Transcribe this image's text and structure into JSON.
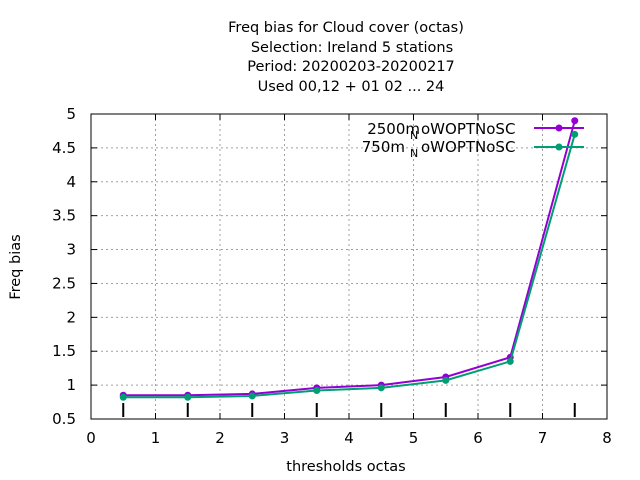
{
  "chart_data": {
    "type": "line",
    "title_lines": [
      "Freq bias  for Cloud cover (octas)",
      "Selection: Ireland      5 stations",
      "Period: 20200203-20200217",
      "Used  00,12  + 01 02 ... 24"
    ],
    "xlabel": "thresholds octas",
    "ylabel": "Freq bias",
    "xlim": [
      0,
      8
    ],
    "ylim": [
      0.5,
      5
    ],
    "xticks": [
      "0",
      "1",
      "2",
      "3",
      "4",
      "5",
      "6",
      "7",
      "8"
    ],
    "yticks": [
      "0.5",
      "1",
      "1.5",
      "2",
      "2.5",
      "3",
      "3.5",
      "4",
      "4.5",
      "5"
    ],
    "grid": true,
    "legend_position": "top-right",
    "x": [
      0.5,
      1.5,
      2.5,
      3.5,
      4.5,
      5.5,
      6.5,
      7.5
    ],
    "series": [
      {
        "name": "2500m",
        "name_sub": "N",
        "name_rest": "oWOPTNoSC",
        "color": "#9400d3",
        "values": [
          0.85,
          0.85,
          0.87,
          0.96,
          1.0,
          1.12,
          1.41,
          4.9
        ]
      },
      {
        "name": "750m",
        "name_sub": "N",
        "name_rest": "oWOPTNoSC",
        "color": "#009e73",
        "values": [
          0.82,
          0.82,
          0.84,
          0.92,
          0.96,
          1.07,
          1.35,
          4.7
        ]
      }
    ]
  }
}
